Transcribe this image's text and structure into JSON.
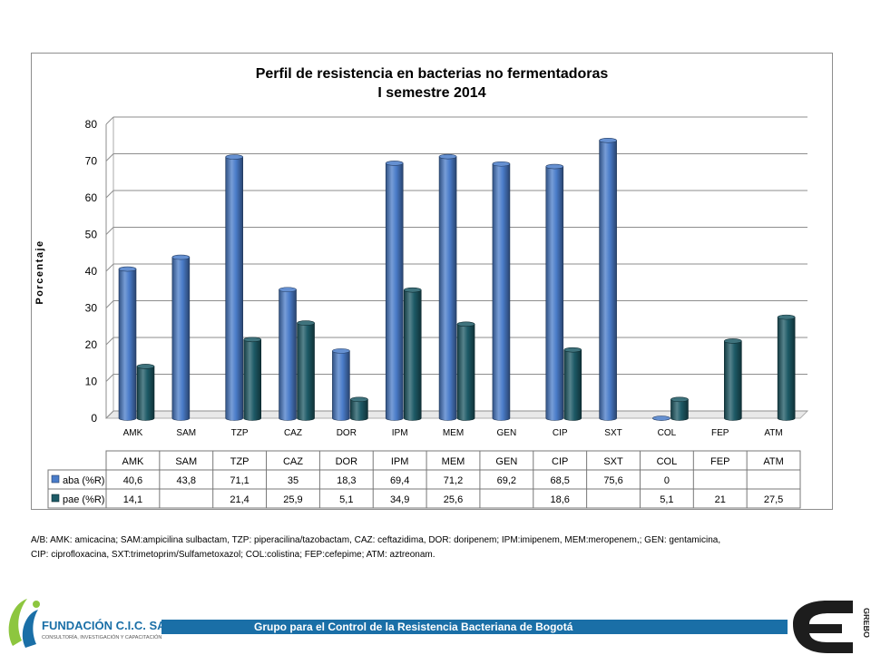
{
  "chart_data": {
    "type": "bar",
    "title_lines": [
      "Perfil de resistencia en bacterias no fermentadoras",
      "I semestre 2014"
    ],
    "ylabel": "Porcentaje",
    "ylim": [
      0,
      80
    ],
    "yticks": [
      "0",
      "10",
      "20",
      "30",
      "40",
      "50",
      "60",
      "70",
      "80"
    ],
    "categories": [
      "AMK",
      "SAM",
      "TZP",
      "CAZ",
      "DOR",
      "IPM",
      "MEM",
      "GEN",
      "CIP",
      "SXT",
      "COL",
      "FEP",
      "ATM"
    ],
    "series": [
      {
        "name": "aba (%R)",
        "color": "#4a7cc9",
        "values": [
          40.6,
          43.8,
          71.1,
          35,
          18.3,
          69.4,
          71.2,
          69.2,
          68.5,
          75.6,
          0,
          null,
          null
        ],
        "labels": [
          "40,6",
          "43,8",
          "71,1",
          "35",
          "18,3",
          "69,4",
          "71,2",
          "69,2",
          "68,5",
          "75,6",
          "0",
          "",
          ""
        ]
      },
      {
        "name": "pae (%R)",
        "color": "#1d5a66",
        "values": [
          14.1,
          null,
          21.4,
          25.9,
          5.1,
          34.9,
          25.6,
          null,
          18.6,
          null,
          5.1,
          21,
          27.5
        ],
        "labels": [
          "14,1",
          "",
          "21,4",
          "25,9",
          "5,1",
          "34,9",
          "25,6",
          "",
          "18,6",
          "",
          "5,1",
          "21",
          "27,5"
        ]
      }
    ],
    "grid": true,
    "data_table": true
  },
  "caption": {
    "line1": "A/B: AMK: amicacina; SAM:ampicilina sulbactam, TZP: piperacilina/tazobactam, CAZ: ceftazidima, DOR: doripenem;  IPM:imipenem, MEM:meropenem,; GEN: gentamicina,",
    "line2": "CIP: ciprofloxacina, SXT:trimetoprim/Sulfametoxazol; COL:colistina; FEP:cefepime; ATM: aztreonam."
  },
  "footer": {
    "banner_text": "Grupo para el Control de la Resistencia Bacteriana de Bogotá",
    "logo_left_text": "FUNDACIÓN C.I.C. SALUD",
    "logo_left_subtext": "CONSULTORÍA, INVESTIGACIÓN Y CAPACITACIÓN",
    "logo_right_text": "GREBO",
    "banner_color": "#1a6fa7",
    "logo_green": "#8dc63f",
    "logo_blue": "#1a6fa7"
  }
}
